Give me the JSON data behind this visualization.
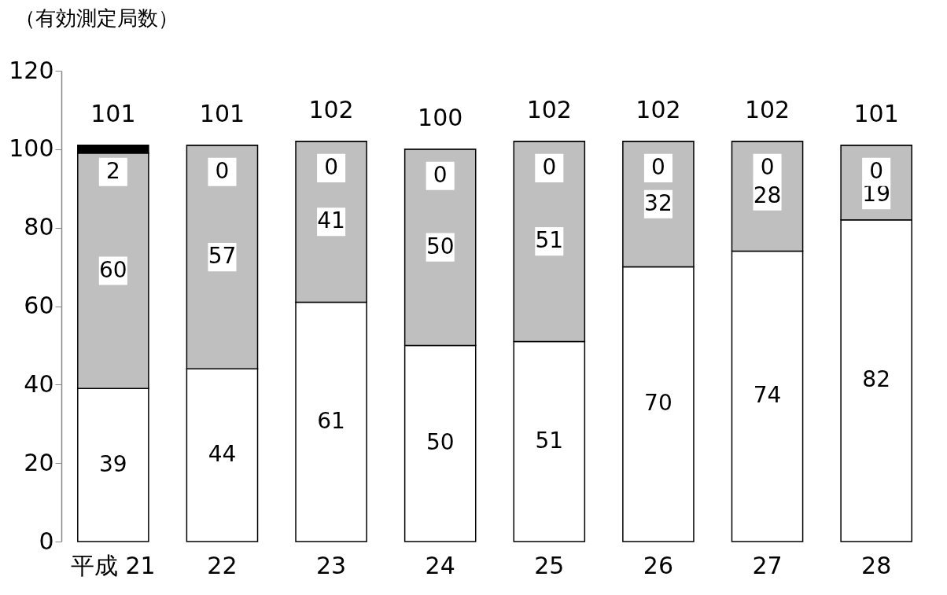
{
  "chart_data": {
    "type": "bar",
    "stacked": true,
    "ylabel": "（有効測定局数）",
    "categories": [
      "平成 21",
      "22",
      "23",
      "24",
      "25",
      "26",
      "27",
      "28"
    ],
    "series": [
      {
        "color": "#ffffff",
        "values": [
          39,
          44,
          61,
          50,
          51,
          70,
          74,
          82
        ]
      },
      {
        "color": "#bfbfbf",
        "values": [
          60,
          57,
          41,
          50,
          51,
          32,
          28,
          19
        ]
      },
      {
        "color": "#000000",
        "values": [
          2,
          0,
          0,
          0,
          0,
          0,
          0,
          0
        ]
      }
    ],
    "totals": [
      "101",
      "101",
      "102",
      "100",
      "102",
      "102",
      "102",
      "101"
    ],
    "data_labels": true,
    "ylim": [
      0,
      120
    ],
    "yticks": [
      0,
      20,
      40,
      60,
      80,
      100,
      120
    ],
    "grid": false,
    "legend": false
  }
}
